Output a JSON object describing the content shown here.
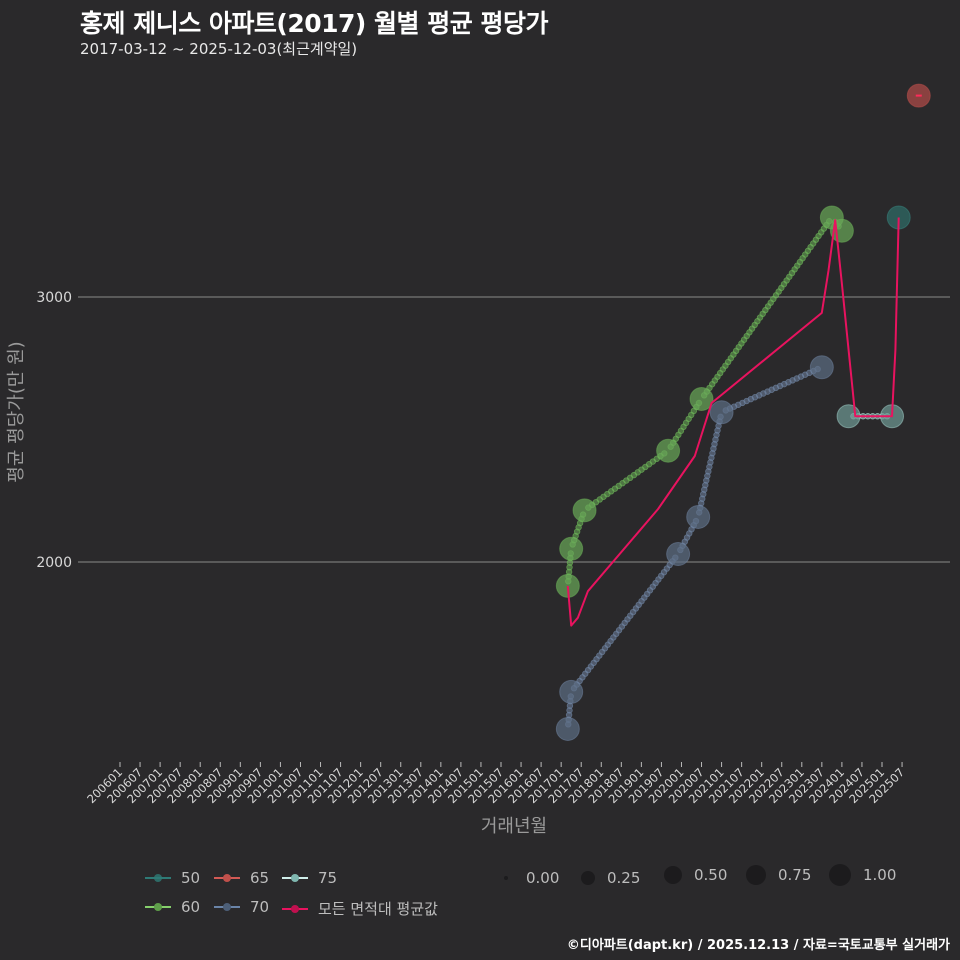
{
  "header": {
    "title": "홍제 제니스 아파트(2017) 월별 평균 평당가",
    "subtitle": "2017-03-12 ~ 2025-12-03(최근계약일)"
  },
  "footer": {
    "credit": "©디아파트(dapt.kr) / 2025.12.13 / 자료=국토교통부 실거래가"
  },
  "legend": {
    "series": [
      {
        "label": "50",
        "color": "#2e7a76"
      },
      {
        "label": "65",
        "color": "#d35a55"
      },
      {
        "label": "75",
        "color": "#a8dcd6"
      },
      {
        "label": "60",
        "color": "#78c060"
      },
      {
        "label": "70",
        "color": "#6a84a8"
      },
      {
        "label": "모든 면적대 평균값",
        "color": "#e8135f"
      }
    ],
    "sizes": [
      {
        "label": "0.00"
      },
      {
        "label": "0.25"
      },
      {
        "label": "0.50"
      },
      {
        "label": "0.75"
      },
      {
        "label": "1.00"
      }
    ]
  },
  "chart_data": {
    "type": "line",
    "title": "홍제 제니스 아파트(2017) 월별 평균 평당가",
    "subtitle": "2017-03-12 ~ 2025-12-03(최근계약일)",
    "xlabel": "거래년월",
    "ylabel": "평균 평당가(만 원)",
    "yticks": [
      2000,
      3000
    ],
    "ylim": [
      1250,
      3850
    ],
    "xticks": [
      "200601",
      "200607",
      "200701",
      "200707",
      "200801",
      "200807",
      "200901",
      "200907",
      "201001",
      "201007",
      "201101",
      "201107",
      "201201",
      "201207",
      "201301",
      "201307",
      "201401",
      "201407",
      "201501",
      "201507",
      "201601",
      "201607",
      "201701",
      "201707",
      "201801",
      "201807",
      "201901",
      "201907",
      "202001",
      "202007",
      "202101",
      "202107",
      "202201",
      "202207",
      "202301",
      "202307",
      "202401",
      "202407",
      "202501",
      "202507"
    ],
    "grid": "horizontal major only",
    "legend_position": "bottom",
    "series": [
      {
        "name": "50",
        "color": "#2e7a76",
        "points": [
          [
            "2025-06",
            3300
          ]
        ]
      },
      {
        "name": "60",
        "color": "#78c060",
        "points": [
          [
            "2017-03",
            1910
          ],
          [
            "2017-04",
            2050
          ],
          [
            "2017-08",
            2195
          ],
          [
            "2019-09",
            2420
          ],
          [
            "2020-07",
            2615
          ],
          [
            "2023-10",
            3300
          ],
          [
            "2024-01",
            3250
          ]
        ]
      },
      {
        "name": "65",
        "color": "#d35a55",
        "points": [
          [
            "2025-12",
            3760
          ]
        ]
      },
      {
        "name": "70",
        "color": "#6a84a8",
        "points": [
          [
            "2017-03",
            1370
          ],
          [
            "2017-04",
            1510
          ],
          [
            "2019-12",
            2030
          ],
          [
            "2020-06",
            2170
          ],
          [
            "2021-01",
            2565
          ],
          [
            "2023-07",
            2735
          ]
        ]
      },
      {
        "name": "75",
        "color": "#a8dcd6",
        "points": [
          [
            "2024-03",
            2550
          ],
          [
            "2025-04",
            2550
          ]
        ]
      },
      {
        "name": "모든 면적대 평균값",
        "color": "#e8135f",
        "points": [
          [
            "2017-03",
            1910
          ],
          [
            "2017-04",
            1760
          ],
          [
            "2017-06",
            1790
          ],
          [
            "2017-09",
            1890
          ],
          [
            "2019-06",
            2200
          ],
          [
            "2020-05",
            2400
          ],
          [
            "2020-10",
            2600
          ],
          [
            "2023-07",
            2940
          ],
          [
            "2023-09",
            3100
          ],
          [
            "2023-11",
            3290
          ],
          [
            "2024-01",
            3050
          ],
          [
            "2024-05",
            2550
          ],
          [
            "2025-04",
            2550
          ],
          [
            "2025-05",
            2800
          ],
          [
            "2025-06",
            3300
          ]
        ]
      }
    ],
    "size_legend": [
      0.0,
      0.25,
      0.5,
      0.75,
      1.0
    ]
  }
}
